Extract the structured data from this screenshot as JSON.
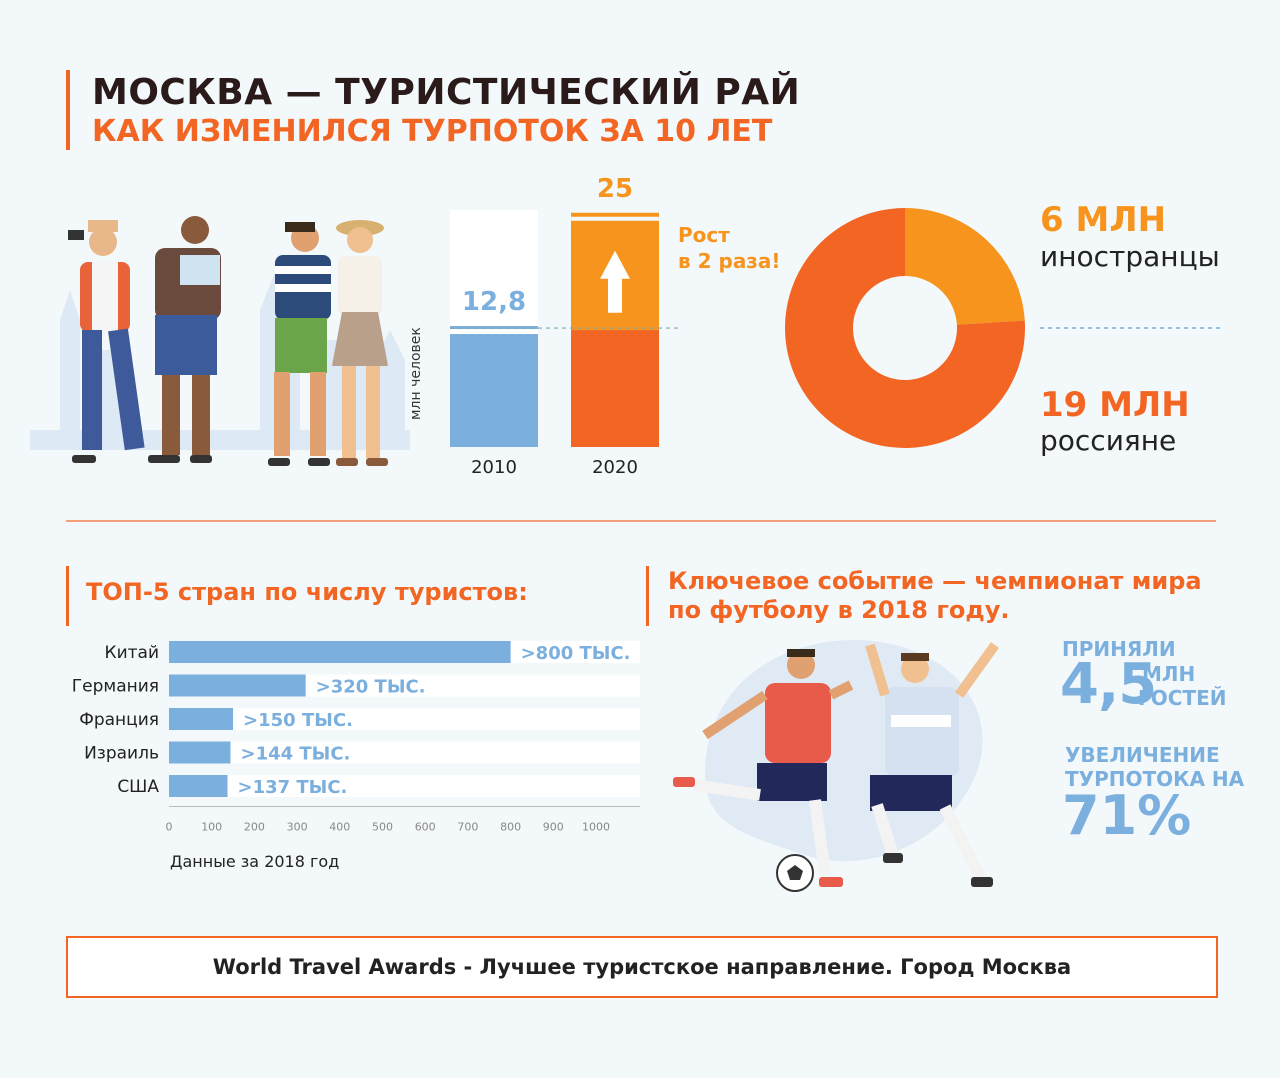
{
  "header": {
    "title": "МОСКВА — ТУРИСТИЧЕСКИЙ РАЙ",
    "subtitle": "КАК ИЗМЕНИЛСЯ ТУРПОТОК ЗА 10 ЛЕТ"
  },
  "colors": {
    "orange": "#f26522",
    "light_orange": "#f7941d",
    "blue": "#7bafde",
    "dark": "#2a1a1a"
  },
  "growth_chart": {
    "ylabel": "млн человек",
    "growth_label": "Рост\nв 2 раза!",
    "growth_line1": "Рост",
    "growth_line2": "в 2 раза!"
  },
  "donut": {
    "foreign_value": "6 МЛН",
    "foreign_label": "иностранцы",
    "russian_value": "19 МЛН",
    "russian_label": "россияне"
  },
  "top5": {
    "title": "ТОП-5 стран по числу туристов:",
    "note": "Данные за 2018 год"
  },
  "event": {
    "title_line1": "Ключевое событие — чемпионат мира",
    "title_line2": "по футболу в 2018 году.",
    "accepted_label": "ПРИНЯЛИ",
    "accepted_value": "4,5",
    "accepted_unit1": "МЛН",
    "accepted_unit2": "ГОСТЕЙ",
    "increase_line1": "УВЕЛИЧЕНИЕ",
    "increase_line2": "ТУРПОТОКА НА",
    "increase_value": "71%"
  },
  "footer": {
    "text": "World Travel Awards - Лучшее туристское направление. Город Москва"
  },
  "chart_data": [
    {
      "type": "bar",
      "categories": [
        "2010",
        "2020"
      ],
      "values": [
        12.8,
        25
      ],
      "value_labels": [
        "12,8",
        "25"
      ],
      "ylabel": "млн человек"
    },
    {
      "type": "pie",
      "categories": [
        "иностранцы",
        "россияне"
      ],
      "values": [
        6,
        19
      ],
      "value_labels": [
        "6 МЛН",
        "19 МЛН"
      ]
    },
    {
      "type": "bar",
      "orientation": "horizontal",
      "title": "ТОП-5 стран по числу туристов:",
      "categories": [
        "Китай",
        "Германия",
        "Франция",
        "Израиль",
        "США"
      ],
      "values": [
        800,
        320,
        150,
        144,
        137
      ],
      "value_labels": [
        ">800 ТЫС.",
        ">320 ТЫС.",
        ">150 ТЫС.",
        ">144 ТЫС.",
        ">137 ТЫС."
      ],
      "xlim": [
        0,
        1000
      ],
      "xticks": [
        "0",
        "100",
        "200",
        "300",
        "400",
        "500",
        "600",
        "700",
        "800",
        "900",
        "1000"
      ],
      "note": "Данные за 2018 год"
    }
  ]
}
